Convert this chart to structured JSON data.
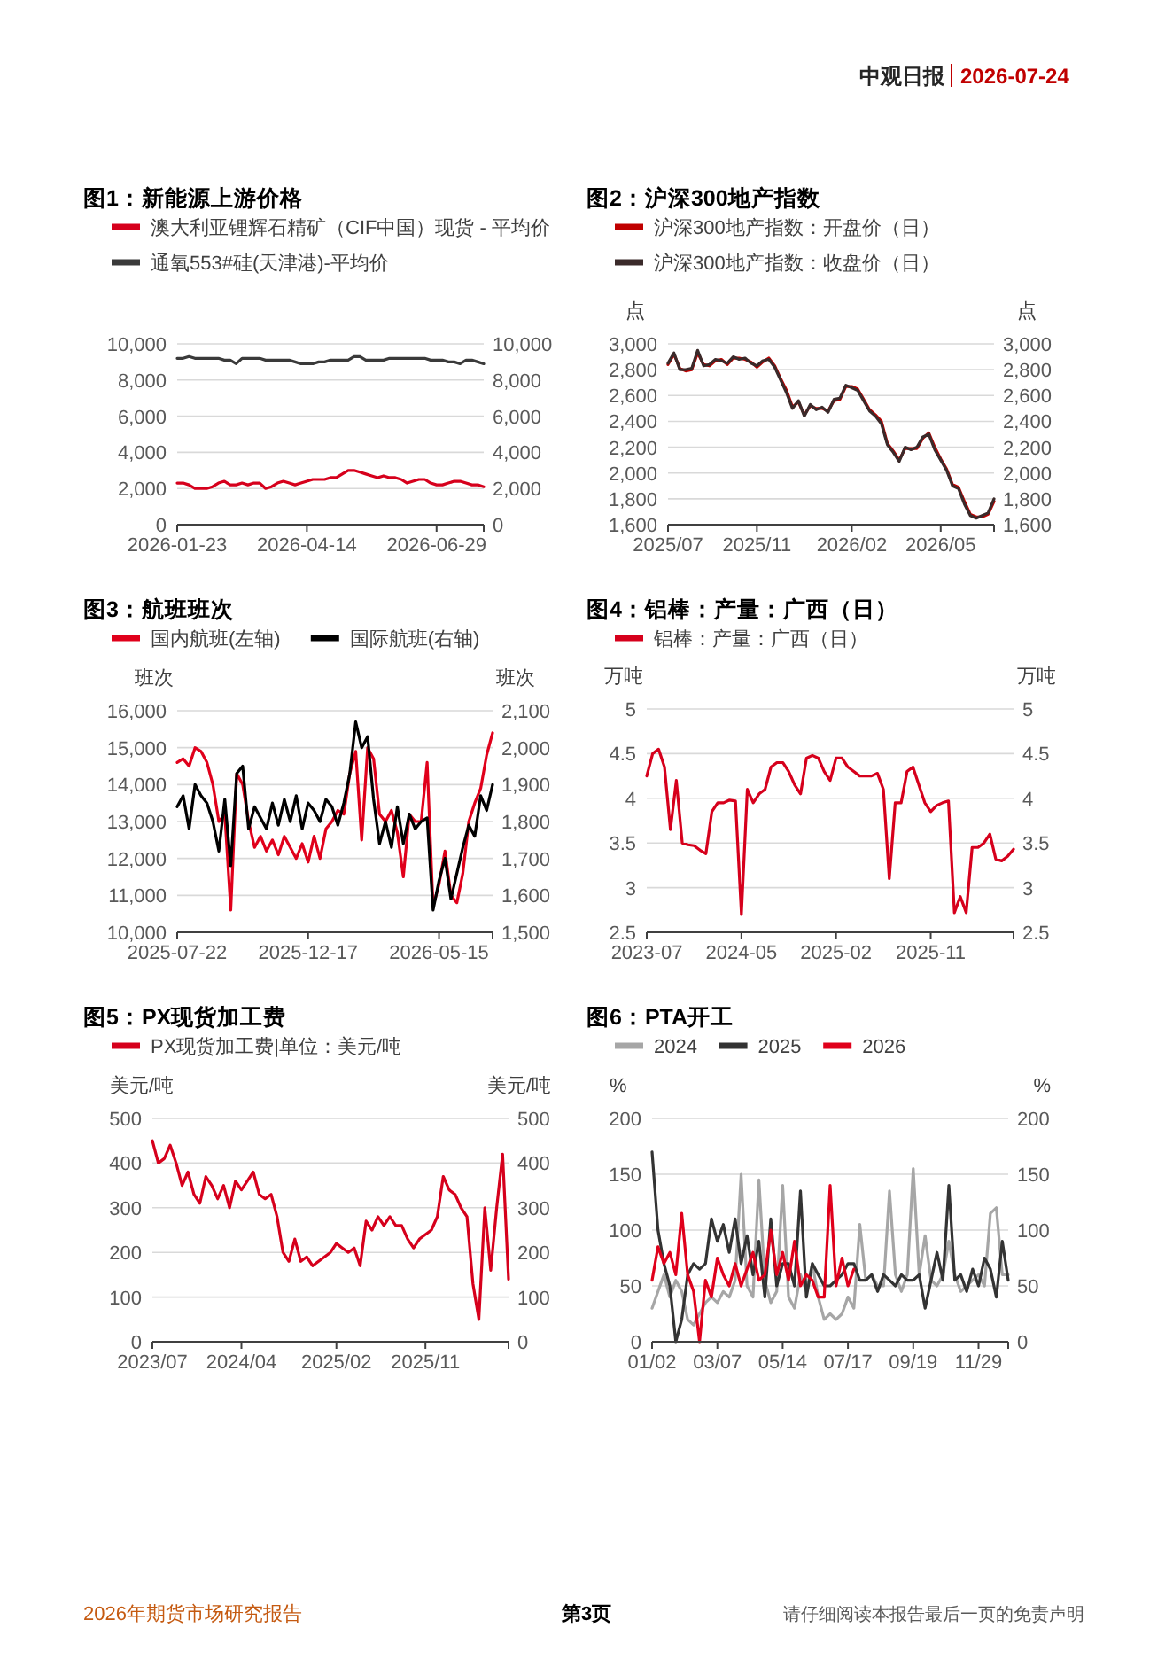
{
  "chart_data": [
    {
      "type": "line",
      "title": "图1：新能源上游价格",
      "legend": "top",
      "grid": "y",
      "categories": [
        "2026-01-23",
        null,
        null,
        null,
        null,
        null,
        null,
        null,
        null,
        null,
        null,
        null,
        null,
        null,
        null,
        null,
        null,
        null,
        null,
        null,
        null,
        null,
        "2026-04-14",
        null,
        null,
        null,
        null,
        null,
        null,
        null,
        null,
        null,
        null,
        null,
        null,
        null,
        null,
        null,
        null,
        null,
        null,
        null,
        null,
        null,
        "2026-06-29",
        null,
        null,
        null,
        null,
        null,
        null,
        null,
        null
      ],
      "ylim": [
        0,
        10000
      ],
      "yticks": [
        0,
        {
          "value": 2000,
          "label": "2,000"
        },
        {
          "value": 4000,
          "label": "4,000"
        },
        {
          "value": 6000,
          "label": "6,000"
        },
        {
          "value": 8000,
          "label": "8,000"
        },
        {
          "value": 10000,
          "label": "10,000"
        }
      ],
      "y2lim": [
        0,
        10000
      ],
      "y2ticks": [
        0,
        {
          "value": 2000,
          "label": "2,000"
        },
        {
          "value": 4000,
          "label": "4,000"
        },
        {
          "value": 6000,
          "label": "6,000"
        },
        {
          "value": 8000,
          "label": "8,000"
        },
        {
          "value": 10000,
          "label": "10,000"
        }
      ],
      "series": [
        {
          "name": "澳大利亚锂辉石精矿（CIF中国）现货 - 平均价",
          "color": "#d6001c",
          "values": [
            2300,
            2300,
            2200,
            2000,
            2000,
            2000,
            2100,
            2300,
            2400,
            2200,
            2200,
            2300,
            2200,
            2300,
            2300,
            2000,
            2100,
            2300,
            2400,
            2300,
            2200,
            2300,
            2400,
            2500,
            2500,
            2500,
            2600,
            2600,
            2800,
            3000,
            3000,
            2900,
            2800,
            2700,
            2600,
            2700,
            2600,
            2600,
            2500,
            2300,
            2400,
            2500,
            2500,
            2300,
            2200,
            2200,
            2300,
            2400,
            2400,
            2300,
            2200,
            2200,
            2100
          ]
        },
        {
          "name": "通氧553#硅(天津港)-平均价",
          "color": "#3a3a3a",
          "values": [
            9200,
            9200,
            9300,
            9200,
            9200,
            9200,
            9200,
            9200,
            9100,
            9100,
            8900,
            9200,
            9200,
            9200,
            9200,
            9100,
            9100,
            9100,
            9100,
            9100,
            9000,
            8900,
            8900,
            8900,
            9000,
            9000,
            9100,
            9100,
            9100,
            9100,
            9300,
            9300,
            9100,
            9100,
            9100,
            9100,
            9200,
            9200,
            9200,
            9200,
            9200,
            9200,
            9200,
            9100,
            9100,
            9100,
            9000,
            9000,
            8900,
            9100,
            9100,
            9000,
            8900
          ]
        }
      ]
    },
    {
      "type": "line",
      "title": "图2：沪深300地产指数",
      "legend": "top",
      "grid": "y",
      "ylabel": "点",
      "y2label": "点",
      "categories": [
        "2025/07",
        null,
        null,
        null,
        null,
        null,
        null,
        null,
        null,
        null,
        null,
        null,
        null,
        null,
        null,
        "2025/11",
        null,
        null,
        null,
        null,
        null,
        null,
        null,
        null,
        null,
        null,
        null,
        null,
        null,
        null,
        null,
        "2026/02",
        null,
        null,
        null,
        null,
        null,
        null,
        null,
        null,
        null,
        null,
        null,
        null,
        null,
        null,
        "2026/05",
        null,
        null,
        null,
        null,
        null,
        null,
        null,
        null,
        null
      ],
      "ylim": [
        1600,
        3000
      ],
      "yticks": [
        {
          "value": 1600,
          "label": "1,600"
        },
        {
          "value": 1800,
          "label": "1,800"
        },
        {
          "value": 2000,
          "label": "2,000"
        },
        {
          "value": 2200,
          "label": "2,200"
        },
        {
          "value": 2400,
          "label": "2,400"
        },
        {
          "value": 2600,
          "label": "2,600"
        },
        {
          "value": 2800,
          "label": "2,800"
        },
        {
          "value": 3000,
          "label": "3,000"
        }
      ],
      "y2lim": [
        1600,
        3000
      ],
      "y2ticks": [
        {
          "value": 1600,
          "label": "1,600"
        },
        {
          "value": 1800,
          "label": "1,800"
        },
        {
          "value": 2000,
          "label": "2,000"
        },
        {
          "value": 2200,
          "label": "2,200"
        },
        {
          "value": 2400,
          "label": "2,400"
        },
        {
          "value": 2600,
          "label": "2,600"
        },
        {
          "value": 2800,
          "label": "2,800"
        },
        {
          "value": 3000,
          "label": "3,000"
        }
      ],
      "series": [
        {
          "name": "沪深300地产指数：开盘价（日）",
          "color": "#c00000",
          "values": [
            2840,
            2920,
            2810,
            2790,
            2800,
            2930,
            2840,
            2830,
            2870,
            2880,
            2840,
            2890,
            2890,
            2880,
            2860,
            2820,
            2860,
            2890,
            2830,
            2730,
            2640,
            2510,
            2550,
            2450,
            2520,
            2500,
            2500,
            2480,
            2560,
            2570,
            2670,
            2670,
            2650,
            2570,
            2490,
            2450,
            2400,
            2230,
            2170,
            2100,
            2190,
            2190,
            2190,
            2270,
            2310,
            2200,
            2110,
            2030,
            1910,
            1890,
            1780,
            1680,
            1660,
            1660,
            1680,
            1780
          ]
        },
        {
          "name": "沪深300地产指数：收盘价（日）",
          "color": "#3a2a2a",
          "values": [
            2850,
            2930,
            2800,
            2800,
            2810,
            2950,
            2830,
            2840,
            2880,
            2870,
            2850,
            2900,
            2880,
            2890,
            2850,
            2830,
            2870,
            2880,
            2820,
            2720,
            2620,
            2500,
            2560,
            2440,
            2530,
            2490,
            2510,
            2470,
            2570,
            2580,
            2680,
            2660,
            2640,
            2560,
            2480,
            2440,
            2380,
            2220,
            2160,
            2090,
            2200,
            2180,
            2200,
            2280,
            2300,
            2180,
            2100,
            2020,
            1900,
            1880,
            1760,
            1670,
            1650,
            1670,
            1690,
            1800
          ]
        }
      ]
    },
    {
      "type": "line",
      "title": "图3：航班班次",
      "legend": "top",
      "grid": "y",
      "ylabel": "班次",
      "y2label": "班次",
      "categories": [
        "2025-07-22",
        null,
        null,
        null,
        null,
        null,
        null,
        null,
        null,
        null,
        null,
        null,
        null,
        null,
        null,
        null,
        null,
        null,
        null,
        null,
        null,
        null,
        "2025-12-17",
        null,
        null,
        null,
        null,
        null,
        null,
        null,
        null,
        null,
        null,
        null,
        null,
        null,
        null,
        null,
        null,
        null,
        null,
        null,
        null,
        null,
        "2026-05-15",
        null,
        null,
        null,
        null,
        null,
        null,
        null,
        null,
        null
      ],
      "ylim": [
        10000,
        16000
      ],
      "yticks": [
        {
          "value": 10000,
          "label": "10,000"
        },
        {
          "value": 11000,
          "label": "11,000"
        },
        {
          "value": 12000,
          "label": "12,000"
        },
        {
          "value": 13000,
          "label": "13,000"
        },
        {
          "value": 14000,
          "label": "14,000"
        },
        {
          "value": 15000,
          "label": "15,000"
        },
        {
          "value": 16000,
          "label": "16,000"
        }
      ],
      "y2lim": [
        1500,
        2100
      ],
      "y2ticks": [
        {
          "value": 1500,
          "label": "1,500"
        },
        {
          "value": 1600,
          "label": "1,600"
        },
        {
          "value": 1700,
          "label": "1,700"
        },
        {
          "value": 1800,
          "label": "1,800"
        },
        {
          "value": 1900,
          "label": "1,900"
        },
        {
          "value": 2000,
          "label": "2,000"
        },
        {
          "value": 2100,
          "label": "2,100"
        }
      ],
      "series": [
        {
          "name": "国内航班(左轴)",
          "color": "#e0001b",
          "values": [
            14600,
            14700,
            14500,
            15000,
            14900,
            14600,
            14000,
            13000,
            13200,
            10600,
            14300,
            14000,
            13000,
            12300,
            12600,
            12200,
            12500,
            12100,
            12600,
            12300,
            12000,
            12400,
            11900,
            12600,
            12000,
            12800,
            13000,
            13300,
            13200,
            14300,
            14900,
            12500,
            15000,
            14700,
            13200,
            13000,
            13300,
            12700,
            11500,
            13200,
            13000,
            13000,
            14600,
            10700,
            11300,
            12200,
            11000,
            10800,
            11600,
            13000,
            13500,
            13900,
            14800,
            15400
          ]
        },
        {
          "name": "国际航班(右轴)",
          "color": "#000000",
          "axis": "y2",
          "values": [
            1840,
            1870,
            1780,
            1900,
            1870,
            1850,
            1800,
            1720,
            1860,
            1680,
            1930,
            1950,
            1780,
            1840,
            1810,
            1780,
            1850,
            1790,
            1860,
            1800,
            1870,
            1780,
            1850,
            1830,
            1800,
            1860,
            1840,
            1790,
            1850,
            1930,
            2070,
            2000,
            2030,
            1860,
            1740,
            1800,
            1730,
            1840,
            1740,
            1820,
            1780,
            1800,
            1810,
            1560,
            1640,
            1700,
            1590,
            1660,
            1730,
            1790,
            1760,
            1870,
            1830,
            1900
          ]
        }
      ]
    },
    {
      "type": "line",
      "title": "图4：铝棒：产量：广西（日）",
      "legend": "top",
      "grid": "y",
      "ylabel": "万吨",
      "y2label": "万吨",
      "categories": [
        "2023-07",
        null,
        null,
        null,
        null,
        null,
        null,
        null,
        null,
        null,
        null,
        null,
        null,
        null,
        null,
        null,
        "2024-05",
        null,
        null,
        null,
        null,
        null,
        null,
        null,
        null,
        null,
        null,
        null,
        null,
        null,
        null,
        null,
        "2025-02",
        null,
        null,
        null,
        null,
        null,
        null,
        null,
        null,
        null,
        null,
        null,
        null,
        null,
        null,
        null,
        "2025-11",
        null,
        null,
        null,
        null,
        null,
        null,
        null,
        null,
        null,
        null,
        null,
        null,
        null,
        null
      ],
      "ylim": [
        2.5,
        5
      ],
      "yticks": [
        2.5,
        3,
        3.5,
        4,
        4.5,
        5
      ],
      "y2lim": [
        2.5,
        5
      ],
      "y2ticks": [
        2.5,
        3,
        3.5,
        4,
        4.5,
        5
      ],
      "series": [
        {
          "name": "铝棒：产量：广西（日）",
          "color": "#d6001c",
          "values": [
            4.25,
            4.5,
            4.55,
            4.35,
            3.65,
            4.2,
            3.5,
            3.48,
            3.47,
            3.42,
            3.38,
            3.85,
            3.95,
            3.95,
            3.98,
            3.97,
            2.7,
            4.1,
            3.95,
            4.05,
            4.1,
            4.35,
            4.4,
            4.4,
            4.3,
            4.15,
            4.05,
            4.45,
            4.48,
            4.45,
            4.3,
            4.2,
            4.45,
            4.45,
            4.35,
            4.3,
            4.25,
            4.25,
            4.25,
            4.28,
            4.1,
            3.1,
            3.95,
            3.95,
            4.3,
            4.35,
            4.15,
            3.95,
            3.85,
            3.92,
            3.95,
            3.97,
            2.72,
            2.9,
            2.72,
            3.45,
            3.45,
            3.5,
            3.6,
            3.32,
            3.3,
            3.35,
            3.43
          ]
        }
      ]
    },
    {
      "type": "line",
      "title": "图5：PX现货加工费",
      "legend": "top",
      "grid": "y",
      "ylabel": "美元/吨",
      "y2label": "美元/吨",
      "categories": [
        "2023/07",
        null,
        null,
        null,
        null,
        null,
        null,
        null,
        null,
        null,
        null,
        null,
        null,
        null,
        null,
        "2024/04",
        null,
        null,
        null,
        null,
        null,
        null,
        null,
        null,
        null,
        null,
        null,
        null,
        null,
        null,
        null,
        "2025/02",
        null,
        null,
        null,
        null,
        null,
        null,
        null,
        null,
        null,
        null,
        null,
        null,
        null,
        null,
        "2025/11",
        null,
        null,
        null,
        null,
        null,
        null,
        null,
        null,
        null,
        null,
        null,
        null,
        null,
        null
      ],
      "ylim": [
        0,
        500
      ],
      "yticks": [
        0,
        100,
        200,
        300,
        400,
        500
      ],
      "y2lim": [
        0,
        500
      ],
      "y2ticks": [
        0,
        100,
        200,
        300,
        400,
        500
      ],
      "series": [
        {
          "name": "PX现货加工费|单位：美元/吨",
          "color": "#d6001c",
          "values": [
            450,
            400,
            410,
            440,
            400,
            350,
            380,
            330,
            310,
            370,
            350,
            320,
            350,
            300,
            360,
            340,
            360,
            380,
            330,
            320,
            330,
            280,
            200,
            180,
            230,
            180,
            190,
            170,
            180,
            190,
            200,
            220,
            210,
            200,
            210,
            170,
            270,
            250,
            280,
            260,
            280,
            260,
            260,
            230,
            210,
            230,
            240,
            250,
            280,
            370,
            340,
            330,
            300,
            280,
            130,
            50,
            300,
            160,
            300,
            420,
            140
          ]
        }
      ]
    },
    {
      "type": "line",
      "title": "图6：PTA开工",
      "legend": "top",
      "grid": "y",
      "ylabel": "%",
      "y2label": "%",
      "categories": [
        "01/02",
        null,
        null,
        null,
        null,
        null,
        null,
        null,
        null,
        null,
        null,
        "03/07",
        null,
        null,
        null,
        null,
        null,
        null,
        null,
        null,
        null,
        null,
        "05/14",
        null,
        null,
        null,
        null,
        null,
        null,
        null,
        null,
        null,
        null,
        "07/17",
        null,
        null,
        null,
        null,
        null,
        null,
        null,
        null,
        null,
        null,
        "09/19",
        null,
        null,
        null,
        null,
        null,
        null,
        null,
        null,
        null,
        null,
        "11/29",
        null,
        null,
        null,
        null,
        null
      ],
      "ylim": [
        0,
        200
      ],
      "yticks": [
        0,
        50,
        100,
        150,
        200
      ],
      "y2lim": [
        0,
        200
      ],
      "y2ticks": [
        0,
        50,
        100,
        150,
        200
      ],
      "series": [
        {
          "name": "2024",
          "color": "#a6a6a6",
          "values": [
            30,
            45,
            60,
            40,
            55,
            45,
            20,
            15,
            25,
            35,
            40,
            35,
            45,
            40,
            55,
            150,
            50,
            40,
            145,
            55,
            35,
            45,
            140,
            40,
            30,
            60,
            45,
            70,
            40,
            20,
            25,
            20,
            25,
            40,
            30,
            105,
            55,
            60,
            50,
            50,
            135,
            60,
            45,
            60,
            155,
            60,
            95,
            55,
            50,
            60,
            90,
            60,
            45,
            50,
            55,
            60,
            50,
            115,
            120,
            60,
            60
          ]
        },
        {
          "name": "2025",
          "color": "#333333",
          "values": [
            170,
            100,
            70,
            50,
            0,
            20,
            60,
            70,
            65,
            70,
            110,
            90,
            105,
            80,
            110,
            70,
            95,
            60,
            90,
            40,
            110,
            50,
            70,
            70,
            50,
            135,
            40,
            70,
            60,
            50,
            50,
            55,
            60,
            70,
            70,
            55,
            55,
            60,
            45,
            60,
            55,
            50,
            60,
            55,
            55,
            60,
            30,
            55,
            80,
            55,
            140,
            55,
            60,
            45,
            65,
            50,
            75,
            65,
            40,
            90,
            55
          ]
        },
        {
          "name": "2026",
          "color": "#e0001b",
          "values": [
            55,
            85,
            70,
            80,
            60,
            115,
            60,
            45,
            0,
            55,
            40,
            75,
            60,
            50,
            70,
            50,
            65,
            80,
            55,
            60,
            100,
            60,
            80,
            55,
            90,
            50,
            60,
            55,
            40,
            40,
            140,
            50,
            75,
            50,
            65,
            null,
            null,
            null,
            null,
            null,
            null,
            null,
            null,
            null,
            null,
            null,
            null,
            null,
            null,
            null,
            null,
            null,
            null,
            null,
            null,
            null,
            null,
            null,
            null,
            null,
            null
          ]
        }
      ]
    },
    {
      "type": "other",
      "title": "中观日报",
      "annotations": [
        "2026-07-24",
        "2026年期货市场研究报告",
        "第3页",
        "请仔细阅读本报告最后一页的免责声明"
      ]
    }
  ]
}
